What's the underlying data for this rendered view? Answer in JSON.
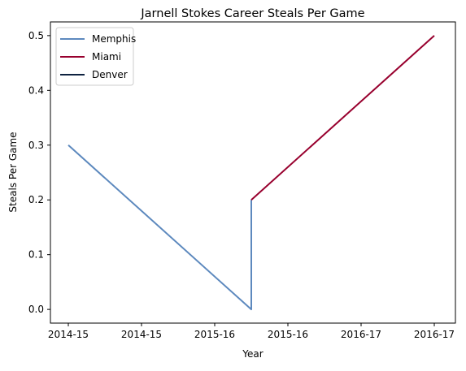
{
  "chart_data": {
    "type": "line",
    "title": "Jarnell Stokes Career Steals Per Game",
    "xlabel": "Year",
    "ylabel": "Steals Per Game",
    "x_ticks": [
      "2014-15",
      "2014-15",
      "2015-16",
      "2015-16",
      "2016-17",
      "2016-17"
    ],
    "y_ticks": [
      "0.0",
      "0.1",
      "0.2",
      "0.3",
      "0.4",
      "0.5"
    ],
    "ylim": [
      -0.025,
      0.525
    ],
    "grid": false,
    "legend_position": "top-left",
    "series": [
      {
        "name": "Memphis",
        "color": "#5d89be",
        "points": [
          {
            "x": "2014-15",
            "y": 0.3
          },
          {
            "x": "2015-16",
            "y": 0.0
          },
          {
            "x": "2015-16",
            "y": 0.2
          }
        ]
      },
      {
        "name": "Miami",
        "color": "#98002e",
        "points": [
          {
            "x": "2015-16",
            "y": 0.2
          },
          {
            "x": "2016-17",
            "y": 0.5
          }
        ]
      },
      {
        "name": "Denver",
        "color": "#0e2240",
        "points": []
      }
    ]
  }
}
